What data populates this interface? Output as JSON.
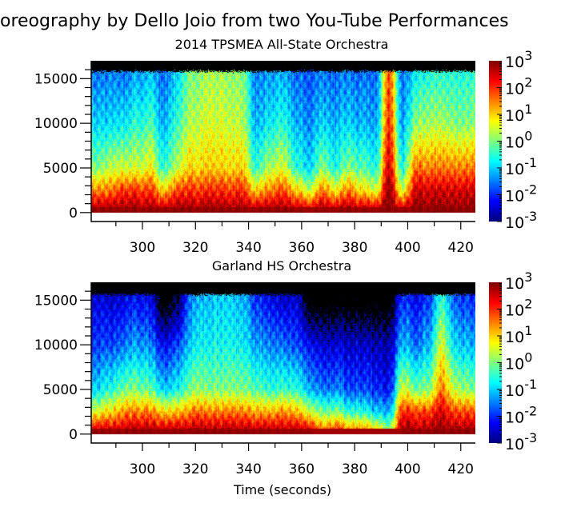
{
  "title": "oreography by Dello Joio from two You-Tube Performances",
  "chart_data": [
    {
      "type": "heatmap",
      "title": "2014 TPSMEA All-State Orchestra",
      "xlabel": "",
      "ylabel": "",
      "xlim": [
        280.7,
        425.5
      ],
      "ylim": [
        -1000,
        17000
      ],
      "data_max_frequency": 15800,
      "xticks": [
        300,
        320,
        340,
        360,
        380,
        400,
        420
      ],
      "xtick_labels": [
        "300",
        "320",
        "340",
        "360",
        "380",
        "400",
        "420"
      ],
      "yticks": [
        0,
        5000,
        10000,
        15000
      ],
      "ytick_labels": [
        "0",
        "5000",
        "10000",
        "15000"
      ],
      "colorbar": {
        "scale": "log",
        "range": [
          0.001,
          1000
        ],
        "tick_labels": [
          "10^3",
          "10^2",
          "10^1",
          "10^0",
          "10^-1",
          "10^-2",
          "10^-3"
        ],
        "colormap": "jet"
      },
      "frequency_bands": [
        0,
        2500,
        5000,
        10000,
        15000
      ],
      "times": [
        283,
        288,
        293,
        298,
        303,
        308,
        313,
        318,
        323,
        328,
        333,
        338,
        343,
        348,
        353,
        358,
        363,
        368,
        373,
        378,
        383,
        388,
        393,
        398,
        403,
        408,
        413,
        418,
        423
      ],
      "log10_intensity": [
        [
          3,
          1.5,
          0,
          -1,
          -1.5
        ],
        [
          3,
          1.5,
          0.3,
          -1,
          -1.5
        ],
        [
          3,
          2,
          0.5,
          -0.8,
          -1.5
        ],
        [
          3,
          2,
          0.5,
          -0.5,
          -1.2
        ],
        [
          3,
          2,
          0.8,
          -0.3,
          -1
        ],
        [
          3,
          1,
          -0.5,
          -1.2,
          -1.6
        ],
        [
          3,
          1.8,
          0.3,
          -0.5,
          -1
        ],
        [
          3,
          2,
          1,
          0.3,
          0
        ],
        [
          3,
          2,
          1,
          0.5,
          0.2
        ],
        [
          3,
          2,
          1,
          0.5,
          0.2
        ],
        [
          3,
          2,
          1,
          0.5,
          0.2
        ],
        [
          3,
          2,
          1,
          0.3,
          0
        ],
        [
          3,
          1,
          -0.5,
          -1.2,
          -1.5
        ],
        [
          3,
          1.5,
          0.3,
          -0.8,
          -1.3
        ],
        [
          3,
          1.8,
          0.5,
          -0.6,
          -1.2
        ],
        [
          3,
          1,
          -0.5,
          -1.2,
          -1.6
        ],
        [
          3,
          0.5,
          -0.8,
          -1.3,
          -1.6
        ],
        [
          3,
          1.5,
          0,
          -1,
          -1.5
        ],
        [
          3,
          0.8,
          -0.6,
          -1.2,
          -1.6
        ],
        [
          3,
          1.5,
          0,
          -1,
          -1.5
        ],
        [
          3,
          0.8,
          -0.3,
          -1.2,
          -1.6
        ],
        [
          3,
          0.5,
          -0.6,
          -1.3,
          -1.6
        ],
        [
          3,
          3,
          2.5,
          2,
          1.8
        ],
        [
          3,
          0.5,
          -0.6,
          -1.3,
          -1.6
        ],
        [
          3,
          2.5,
          1.5,
          0,
          -0.8
        ],
        [
          3,
          2.5,
          1.5,
          0.2,
          -0.5
        ],
        [
          3,
          2.5,
          1.5,
          0.2,
          -0.5
        ],
        [
          3,
          2.5,
          1.5,
          0,
          -0.5
        ],
        [
          3,
          2.5,
          1.5,
          0,
          -0.5
        ]
      ]
    },
    {
      "type": "heatmap",
      "title": "Garland HS Orchestra",
      "xlabel": "Time (seconds)",
      "ylabel": "",
      "xlim": [
        280.7,
        425.5
      ],
      "ylim": [
        -1000,
        17000
      ],
      "data_max_frequency": 15600,
      "xticks": [
        300,
        320,
        340,
        360,
        380,
        400,
        420
      ],
      "xtick_labels": [
        "300",
        "320",
        "340",
        "360",
        "380",
        "400",
        "420"
      ],
      "yticks": [
        0,
        5000,
        10000,
        15000
      ],
      "ytick_labels": [
        "0",
        "5000",
        "10000",
        "15000"
      ],
      "colorbar": {
        "scale": "log",
        "range": [
          0.001,
          1000
        ],
        "tick_labels": [
          "10^3",
          "10^2",
          "10^1",
          "10^0",
          "10^-1",
          "10^-2",
          "10^-3"
        ],
        "colormap": "jet"
      },
      "frequency_bands": [
        0,
        2500,
        5000,
        10000,
        15000
      ],
      "times": [
        283,
        288,
        293,
        298,
        303,
        308,
        313,
        318,
        323,
        328,
        333,
        338,
        343,
        348,
        353,
        358,
        363,
        368,
        373,
        378,
        383,
        388,
        393,
        398,
        403,
        408,
        413,
        418,
        423
      ],
      "log10_intensity": [
        [
          3,
          0.5,
          -1,
          -2,
          -2.5
        ],
        [
          3,
          1,
          -0.5,
          -1.8,
          -2.5
        ],
        [
          3,
          1.5,
          0,
          -1.5,
          -2.3
        ],
        [
          3,
          1.5,
          0,
          -1.3,
          -2.2
        ],
        [
          3,
          1.5,
          -0.2,
          -1.5,
          -2.4
        ],
        [
          3,
          1,
          -1,
          -2.3,
          -4
        ],
        [
          3,
          1,
          -0.8,
          -2,
          -3.5
        ],
        [
          3,
          1.5,
          0,
          -1,
          -1.5
        ],
        [
          3,
          1.5,
          0,
          -0.8,
          -1.2
        ],
        [
          3,
          1.5,
          0,
          -0.7,
          -1
        ],
        [
          3,
          1.5,
          0,
          -0.7,
          -1
        ],
        [
          3,
          1.5,
          0,
          -0.8,
          -1.2
        ],
        [
          3,
          1.2,
          -0.3,
          -1.3,
          -2
        ],
        [
          3,
          1.2,
          -0.5,
          -1.5,
          -2.3
        ],
        [
          3,
          1.5,
          -0.3,
          -1.5,
          -2.5
        ],
        [
          3,
          1.2,
          -0.5,
          -1.8,
          -2.5
        ],
        [
          3,
          0.5,
          -1.2,
          -2.2,
          -4
        ],
        [
          2,
          0,
          -1.5,
          -2.5,
          -4
        ],
        [
          2.5,
          0,
          -1.5,
          -2.5,
          -4
        ],
        [
          2,
          -0.5,
          -1.8,
          -2.6,
          -4
        ],
        [
          2,
          -0.5,
          -1.8,
          -2.6,
          -4
        ],
        [
          1.5,
          -1,
          -2,
          -2.7,
          -4
        ],
        [
          0.5,
          -1.2,
          -2.2,
          -2.8,
          -4
        ],
        [
          3,
          2,
          0.5,
          -1.2,
          -2
        ],
        [
          3,
          2,
          0,
          -1.5,
          -2.2
        ],
        [
          3,
          1.8,
          0,
          -1.2,
          -2
        ],
        [
          3,
          2.5,
          1.5,
          0.5,
          -0.5
        ],
        [
          3,
          1.8,
          0.3,
          -1,
          -1.8
        ],
        [
          3,
          1.8,
          0,
          -1.2,
          -2
        ]
      ]
    }
  ]
}
